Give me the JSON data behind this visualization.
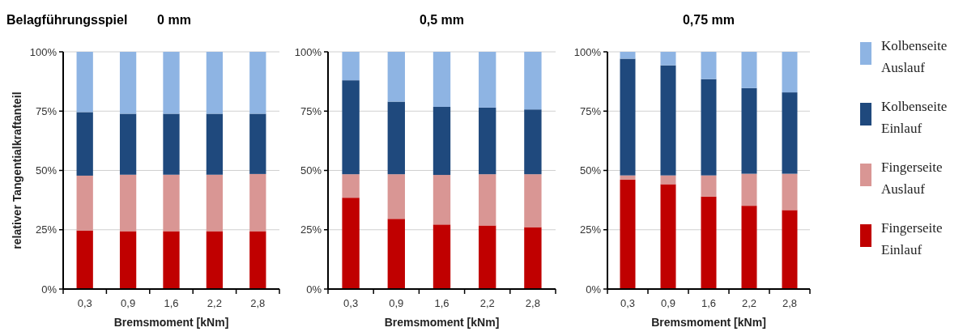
{
  "chart_data": [
    {
      "type": "bar",
      "stacked": true,
      "title": "0 mm",
      "annotations": [
        "Belagführungsspiel"
      ],
      "xlabel": "Bremsmoment [kNm]",
      "ylabel": "relativer Tangentialkraftanteil",
      "categories": [
        "0,3",
        "0,9",
        "1,6",
        "2,2",
        "2,8"
      ],
      "ylim": [
        0,
        100
      ],
      "yticks": [
        {
          "value": 0,
          "label": "0%"
        },
        {
          "value": 25,
          "label": "25%"
        },
        {
          "value": 50,
          "label": "50%"
        },
        {
          "value": 75,
          "label": "75%"
        },
        {
          "value": 100,
          "label": "100%"
        }
      ],
      "grid": "y",
      "series": [
        {
          "color": "#c00000",
          "values": [
            24.7,
            24.4,
            24.4,
            24.4,
            24.4
          ]
        },
        {
          "color": "#d99694",
          "values": [
            23.1,
            23.8,
            23.8,
            23.8,
            24.1
          ]
        },
        {
          "color": "#1f497d",
          "values": [
            26.8,
            25.7,
            25.7,
            25.7,
            25.4
          ]
        },
        {
          "color": "#8eb4e3",
          "values": [
            25.4,
            26.1,
            26.1,
            26.1,
            26.1
          ]
        }
      ]
    },
    {
      "type": "bar",
      "stacked": true,
      "title": "0,5 mm",
      "xlabel": "Bremsmoment [kNm]",
      "categories": [
        "0,3",
        "0,9",
        "1,6",
        "2,2",
        "2,8"
      ],
      "ylim": [
        0,
        100
      ],
      "yticks": [
        {
          "value": 0,
          "label": "0%"
        },
        {
          "value": 25,
          "label": "25%"
        },
        {
          "value": 50,
          "label": "50%"
        },
        {
          "value": 75,
          "label": "75%"
        },
        {
          "value": 100,
          "label": "100%"
        }
      ],
      "grid": "y",
      "series": [
        {
          "color": "#c00000",
          "values": [
            38.5,
            29.6,
            27.2,
            26.8,
            26.1
          ]
        },
        {
          "color": "#d99694",
          "values": [
            9.9,
            18.8,
            20.9,
            21.6,
            22.3
          ]
        },
        {
          "color": "#1f497d",
          "values": [
            39.6,
            30.6,
            28.7,
            28.1,
            27.3
          ]
        },
        {
          "color": "#8eb4e3",
          "values": [
            12.0,
            21.0,
            23.2,
            23.5,
            24.3
          ]
        }
      ]
    },
    {
      "type": "bar",
      "stacked": true,
      "title": "0,75 mm",
      "xlabel": "Bremsmoment [kNm]",
      "categories": [
        "0,3",
        "0,9",
        "1,6",
        "2,2",
        "2,8"
      ],
      "ylim": [
        0,
        100
      ],
      "yticks": [
        {
          "value": 0,
          "label": "0%"
        },
        {
          "value": 25,
          "label": "25%"
        },
        {
          "value": 50,
          "label": "50%"
        },
        {
          "value": 75,
          "label": "75%"
        },
        {
          "value": 100,
          "label": "100%"
        }
      ],
      "grid": "y",
      "legend": "right",
      "series": [
        {
          "name": "Fingerseite Einlauf",
          "color": "#c00000",
          "values": [
            46.1,
            44.2,
            39.0,
            35.1,
            33.3
          ]
        },
        {
          "name": "Fingerseite Auslauf",
          "color": "#d99694",
          "values": [
            1.8,
            3.7,
            8.9,
            13.5,
            15.3
          ]
        },
        {
          "name": "Kolbenseite Einlauf",
          "color": "#1f497d",
          "values": [
            49.2,
            46.4,
            40.6,
            36.1,
            34.3
          ]
        },
        {
          "name": "Kolbenseite Auslauf",
          "color": "#8eb4e3",
          "values": [
            2.9,
            5.7,
            11.5,
            15.3,
            17.1
          ]
        }
      ]
    }
  ]
}
